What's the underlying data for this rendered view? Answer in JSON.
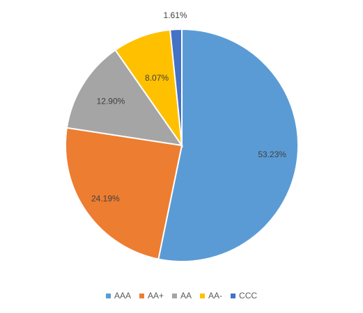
{
  "chart_data": {
    "type": "pie",
    "categories": [
      "AAA",
      "AA+",
      "AA",
      "AA-",
      "CCC"
    ],
    "values": [
      53.23,
      24.19,
      12.9,
      8.07,
      1.61
    ],
    "labels": [
      "53.23%",
      "24.19%",
      "12.90%",
      "8.07%",
      "1.61%"
    ],
    "colors": [
      "#5B9BD5",
      "#ED7D31",
      "#A5A5A5",
      "#FFC000",
      "#4472C4"
    ],
    "legend_position": "bottom",
    "start_angle": "12 o'clock",
    "direction": "clockwise"
  }
}
